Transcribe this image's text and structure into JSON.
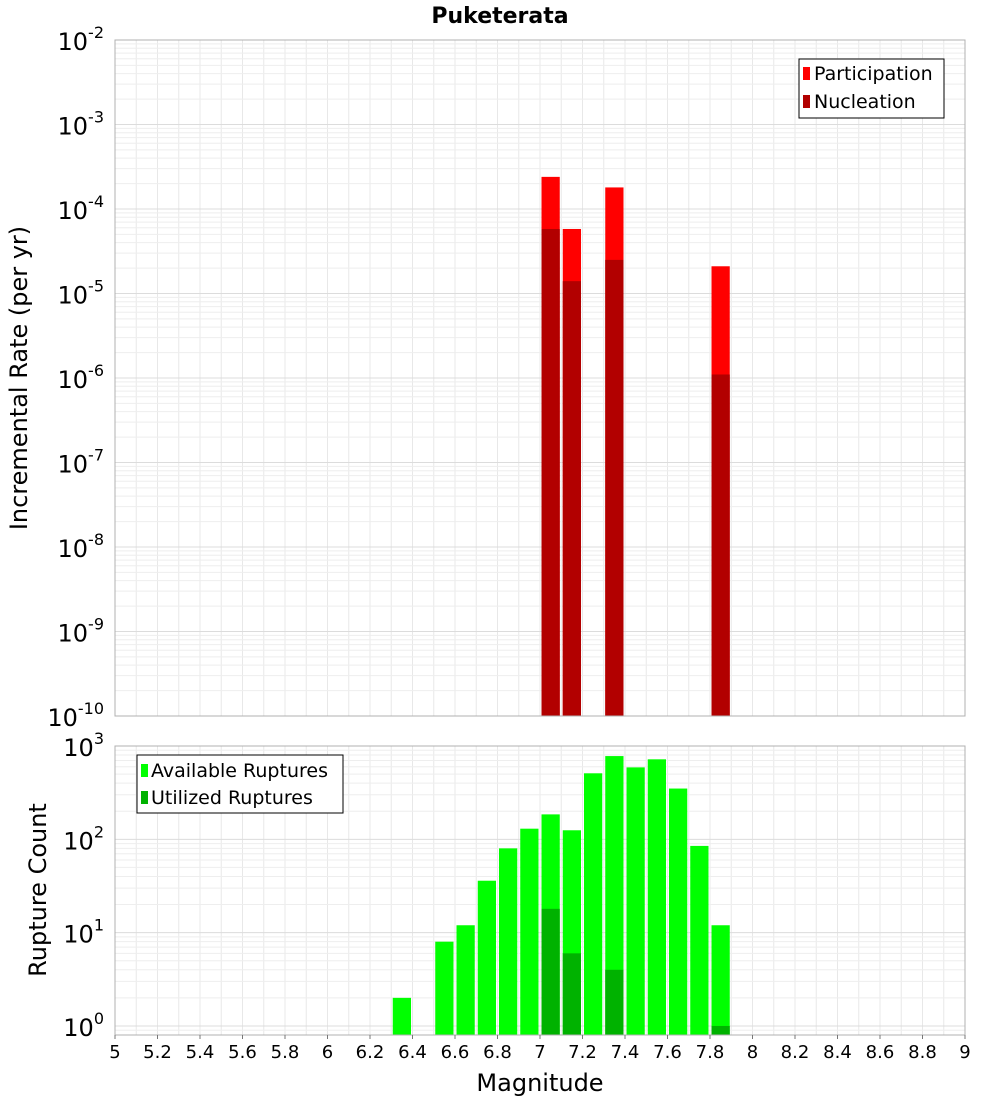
{
  "chart_data": [
    {
      "type": "bar",
      "title": "Puketerata",
      "xlabel": "",
      "ylabel": "Incremental Rate (per yr)",
      "yscale": "log",
      "xlim": [
        5,
        9
      ],
      "ylim": [
        1e-10,
        0.01
      ],
      "bin_width": 0.1,
      "y_ticks": [
        {
          "base": "10",
          "exp": "-10"
        },
        {
          "base": "10",
          "exp": "-9"
        },
        {
          "base": "10",
          "exp": "-8"
        },
        {
          "base": "10",
          "exp": "-7"
        },
        {
          "base": "10",
          "exp": "-6"
        },
        {
          "base": "10",
          "exp": "-5"
        },
        {
          "base": "10",
          "exp": "-4"
        },
        {
          "base": "10",
          "exp": "-3"
        },
        {
          "base": "10",
          "exp": "-2"
        }
      ],
      "legend": {
        "position": "top-right"
      },
      "series": [
        {
          "name": "Participation",
          "color": "#ff0000",
          "x": [
            7.05,
            7.15,
            7.35,
            7.85
          ],
          "values": [
            0.00024,
            5.8e-05,
            0.00018,
            2.1e-05
          ]
        },
        {
          "name": "Nucleation",
          "color": "#b20000",
          "x": [
            7.05,
            7.15,
            7.35,
            7.85
          ],
          "values": [
            5.8e-05,
            1.4e-05,
            2.5e-05,
            1.1e-06
          ]
        }
      ]
    },
    {
      "type": "bar",
      "title": "",
      "xlabel": "Magnitude",
      "ylabel": "Rupture Count",
      "yscale": "log",
      "xlim": [
        5,
        9
      ],
      "ylim": [
        0.8,
        1000
      ],
      "bin_width": 0.1,
      "x_tick_labels": [
        "5",
        "5.2",
        "5.4",
        "5.6",
        "5.8",
        "6",
        "6.2",
        "6.4",
        "6.6",
        "6.8",
        "7",
        "7.2",
        "7.4",
        "7.6",
        "7.8",
        "8",
        "8.2",
        "8.4",
        "8.6",
        "8.8",
        "9"
      ],
      "y_ticks": [
        {
          "base": "10",
          "exp": "0"
        },
        {
          "base": "10",
          "exp": "1"
        },
        {
          "base": "10",
          "exp": "2"
        },
        {
          "base": "10",
          "exp": "3"
        }
      ],
      "legend": {
        "position": "top-left"
      },
      "series": [
        {
          "name": "Available Ruptures",
          "color": "#00ff00",
          "x": [
            6.35,
            6.55,
            6.65,
            6.75,
            6.85,
            6.95,
            7.05,
            7.15,
            7.25,
            7.35,
            7.45,
            7.55,
            7.65,
            7.75,
            7.85
          ],
          "values": [
            2,
            8,
            12,
            36,
            80,
            130,
            185,
            125,
            510,
            780,
            590,
            720,
            350,
            85,
            12
          ]
        },
        {
          "name": "Utilized Ruptures",
          "color": "#00b200",
          "x": [
            7.05,
            7.15,
            7.35,
            7.85
          ],
          "values": [
            18,
            6,
            4,
            1
          ]
        }
      ]
    }
  ]
}
